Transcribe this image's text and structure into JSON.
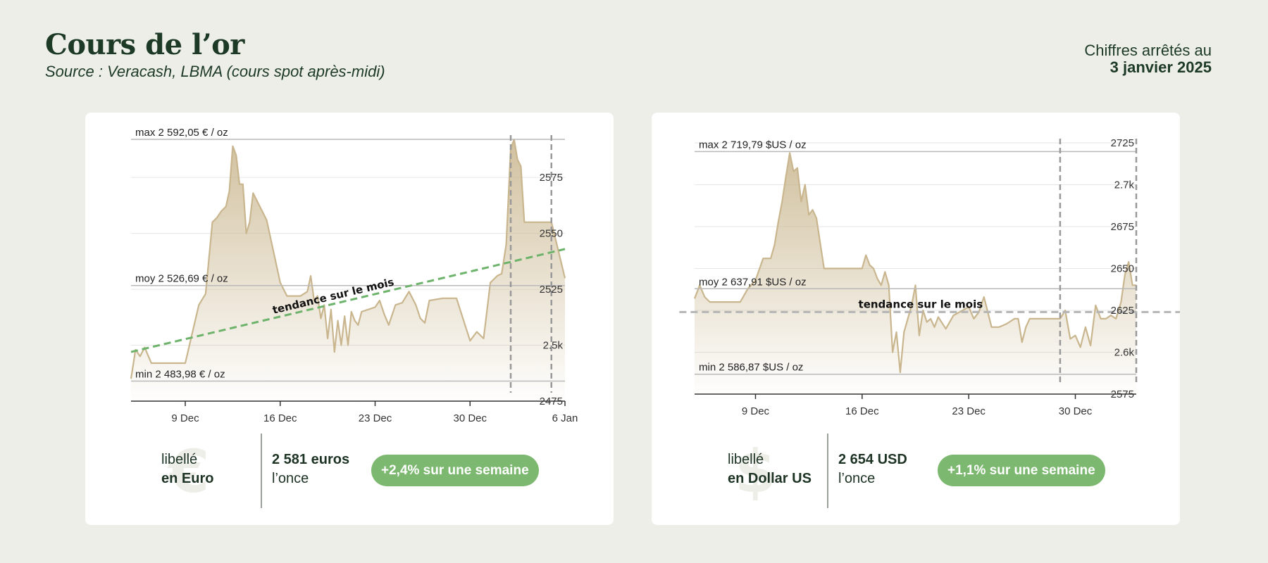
{
  "header": {
    "title": "Cours de l’or",
    "source": "Source : Veracash, LBMA (cours spot après-midi)",
    "date_label": "Chiffres arrêtés au",
    "date_value": "3 janvier 2025"
  },
  "colors": {
    "background": "#eeeee8",
    "card": "#ffffff",
    "line": "#c9b68e",
    "trend_up": "#6db36b",
    "trend_flat": "#b5b5b5",
    "pill": "#7cb870",
    "text_dark": "#1d3a27"
  },
  "cards": {
    "eur": {
      "currency_label_1": "libellé",
      "currency_label_2": "en Euro",
      "currency_symbol": "€",
      "price_value": "2 581 euros",
      "price_unit": "l’once",
      "change_pill": "+2,4% sur une semaine"
    },
    "usd": {
      "currency_label_1": "libellé",
      "currency_label_2": "en Dollar US",
      "currency_symbol": "$",
      "price_value": "2 654  USD",
      "price_unit": "l’once",
      "change_pill": "+1,1% sur une semaine"
    }
  },
  "chart_data": [
    {
      "type": "area",
      "currency": "EUR",
      "x_start": "2024-12-05",
      "x_end": "2025-01-06",
      "x_tick_labels": [
        "9 Dec",
        "16 Dec",
        "23 Dec",
        "30 Dec",
        "6 Jan"
      ],
      "x_tick_dates": [
        "2024-12-09",
        "2024-12-16",
        "2024-12-23",
        "2024-12-30",
        "2025-01-06"
      ],
      "y_tick_labels": [
        "2575",
        "2550",
        "2525",
        "2.5k",
        "2475"
      ],
      "y_tick_values": [
        2575,
        2550,
        2525,
        2500,
        2475
      ],
      "ylim": [
        2475,
        2592.05
      ],
      "ref_lines": [
        {
          "label": "max 2 592,05 € / oz",
          "value": 2592.05
        },
        {
          "label": "moy 2 526,69 € / oz",
          "value": 2526.69
        },
        {
          "label": "min 2 483,98 € / oz",
          "value": 2483.98
        }
      ],
      "vlines": [
        "2025-01-02",
        "2025-01-05"
      ],
      "trend": {
        "label": "tendance sur le mois",
        "start": [
          "2024-12-05",
          2497
        ],
        "end": [
          "2025-01-06",
          2543
        ]
      },
      "x": [
        "2024-12-05",
        "2024-12-05T08",
        "2024-12-05T16",
        "2024-12-06",
        "2024-12-06T12",
        "2024-12-07",
        "2024-12-08",
        "2024-12-09",
        "2024-12-09T12",
        "2024-12-10",
        "2024-12-10T12",
        "2024-12-11",
        "2024-12-11T08",
        "2024-12-11T16",
        "2024-12-12",
        "2024-12-12T06",
        "2024-12-12T12",
        "2024-12-12T18",
        "2024-12-13",
        "2024-12-13T06",
        "2024-12-13T12",
        "2024-12-13T18",
        "2024-12-14",
        "2024-12-15",
        "2024-12-16",
        "2024-12-16T12",
        "2024-12-17",
        "2024-12-17T12",
        "2024-12-18",
        "2024-12-18T06",
        "2024-12-18T12",
        "2024-12-18T18",
        "2024-12-19",
        "2024-12-19T06",
        "2024-12-19T12",
        "2024-12-19T18",
        "2024-12-20",
        "2024-12-20T06",
        "2024-12-20T12",
        "2024-12-20T18",
        "2024-12-21",
        "2024-12-21T06",
        "2024-12-21T12",
        "2024-12-21T18",
        "2024-12-22",
        "2024-12-23",
        "2024-12-23T08",
        "2024-12-23T16",
        "2024-12-24",
        "2024-12-24T12",
        "2024-12-25",
        "2024-12-25T12",
        "2024-12-26",
        "2024-12-26T08",
        "2024-12-26T16",
        "2024-12-27",
        "2024-12-28",
        "2024-12-29",
        "2024-12-30",
        "2024-12-30T12",
        "2024-12-31",
        "2024-12-31T12",
        "2025-01-01",
        "2025-01-01T08",
        "2025-01-01T16",
        "2025-01-02",
        "2025-01-02T06",
        "2025-01-02T12",
        "2025-01-02T18",
        "2025-01-03",
        "2025-01-04",
        "2025-01-05",
        "2025-01-06"
      ],
      "values": [
        2485,
        2498,
        2495,
        2499,
        2492,
        2492,
        2492,
        2492,
        2505,
        2518,
        2523,
        2555,
        2557,
        2560,
        2562,
        2569,
        2589,
        2585,
        2572,
        2572,
        2550,
        2555,
        2568,
        2556,
        2528,
        2522,
        2522,
        2522,
        2524,
        2531,
        2520,
        2522,
        2512,
        2518,
        2503,
        2516,
        2497,
        2511,
        2500,
        2513,
        2500,
        2515,
        2511,
        2509,
        2515,
        2517,
        2520,
        2514,
        2509,
        2518,
        2519,
        2524,
        2518,
        2512,
        2510,
        2520,
        2521,
        2521,
        2502,
        2506,
        2503,
        2528,
        2531,
        2532,
        2545,
        2588,
        2592,
        2583,
        2580,
        2555,
        2555,
        2555,
        2530
      ]
    },
    {
      "type": "area",
      "currency": "USD",
      "x_start": "2024-12-05",
      "x_end": "2025-01-03",
      "x_tick_labels": [
        "9 Dec",
        "16 Dec",
        "23 Dec",
        "30 Dec"
      ],
      "x_tick_dates": [
        "2024-12-09",
        "2024-12-16",
        "2024-12-23",
        "2024-12-30"
      ],
      "y_tick_labels": [
        "2725",
        "2.7k",
        "2675",
        "2650",
        "2625",
        "2.6k",
        "2575"
      ],
      "y_tick_values": [
        2725,
        2700,
        2675,
        2650,
        2625,
        2600,
        2575
      ],
      "ylim": [
        2575,
        2725
      ],
      "ref_lines": [
        {
          "label": "max 2 719,79 $US / oz",
          "value": 2719.79
        },
        {
          "label": "moy 2 637,91 $US / oz",
          "value": 2637.91
        },
        {
          "label": "min 2 586,87 $US / oz",
          "value": 2586.87
        }
      ],
      "vlines": [
        "2024-12-29",
        "2025-01-03"
      ],
      "trend": {
        "label": "tendance sur le mois",
        "start": [
          "2024-12-04",
          2624
        ],
        "end": [
          "2025-01-06",
          2624
        ]
      },
      "x": [
        "2024-12-05",
        "2024-12-05T08",
        "2024-12-05T16",
        "2024-12-06",
        "2024-12-06T12",
        "2024-12-07",
        "2024-12-08",
        "2024-12-08T12",
        "2024-12-09",
        "2024-12-09T12",
        "2024-12-10",
        "2024-12-10T06",
        "2024-12-10T12",
        "2024-12-10T18",
        "2024-12-11",
        "2024-12-11T06",
        "2024-12-11T12",
        "2024-12-11T18",
        "2024-12-12",
        "2024-12-12T06",
        "2024-12-12T12",
        "2024-12-12T18",
        "2024-12-13",
        "2024-12-13T12",
        "2024-12-14",
        "2024-12-15",
        "2024-12-16",
        "2024-12-16T06",
        "2024-12-16T12",
        "2024-12-16T18",
        "2024-12-17",
        "2024-12-17T06",
        "2024-12-17T12",
        "2024-12-17T18",
        "2024-12-18",
        "2024-12-18T06",
        "2024-12-18T12",
        "2024-12-18T18",
        "2024-12-19",
        "2024-12-19T06",
        "2024-12-19T12",
        "2024-12-19T18",
        "2024-12-20",
        "2024-12-20T06",
        "2024-12-20T12",
        "2024-12-20T18",
        "2024-12-21",
        "2024-12-21T12",
        "2024-12-22",
        "2024-12-23",
        "2024-12-23T08",
        "2024-12-23T16",
        "2024-12-24",
        "2024-12-24T12",
        "2024-12-25",
        "2024-12-25T12",
        "2024-12-26",
        "2024-12-26T06",
        "2024-12-26T12",
        "2024-12-26T18",
        "2024-12-27",
        "2024-12-27T12",
        "2024-12-28",
        "2024-12-28T12",
        "2024-12-29",
        "2024-12-29T08",
        "2024-12-29T16",
        "2024-12-30",
        "2024-12-30T08",
        "2024-12-30T16",
        "2024-12-31",
        "2024-12-31T08",
        "2024-12-31T16",
        "2025-01-01",
        "2025-01-01T08",
        "2025-01-01T16",
        "2025-01-02",
        "2025-01-02T06",
        "2025-01-02T12",
        "2025-01-02T18",
        "2025-01-03"
      ],
      "values": [
        2632,
        2640,
        2633,
        2630,
        2630,
        2630,
        2630,
        2638,
        2643,
        2656,
        2656,
        2664,
        2678,
        2690,
        2705,
        2719,
        2708,
        2710,
        2690,
        2700,
        2682,
        2685,
        2680,
        2650,
        2650,
        2650,
        2650,
        2658,
        2652,
        2650,
        2644,
        2640,
        2648,
        2640,
        2600,
        2612,
        2588,
        2612,
        2620,
        2628,
        2640,
        2610,
        2625,
        2618,
        2620,
        2615,
        2621,
        2614,
        2622,
        2627,
        2620,
        2624,
        2633,
        2615,
        2615,
        2617,
        2620,
        2620,
        2606,
        2615,
        2620,
        2620,
        2620,
        2620,
        2620,
        2625,
        2608,
        2610,
        2603,
        2615,
        2604,
        2628,
        2620,
        2620,
        2622,
        2620,
        2630,
        2646,
        2654,
        2640,
        2640
      ]
    }
  ]
}
